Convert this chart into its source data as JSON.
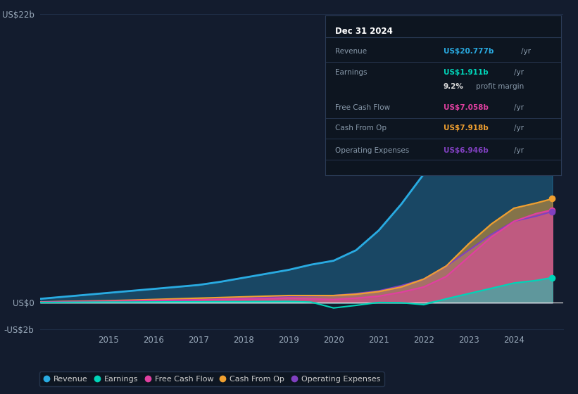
{
  "background_color": "#131c2e",
  "plot_bg_color": "#131c2e",
  "grid_color": "#1e2d45",
  "years": [
    2013.5,
    2014.0,
    2014.5,
    2015.0,
    2015.5,
    2016.0,
    2016.5,
    2017.0,
    2017.5,
    2018.0,
    2018.5,
    2019.0,
    2019.5,
    2020.0,
    2020.5,
    2021.0,
    2021.5,
    2022.0,
    2022.5,
    2023.0,
    2023.5,
    2024.0,
    2024.5,
    2024.85
  ],
  "revenue": [
    0.3,
    0.45,
    0.6,
    0.75,
    0.9,
    1.05,
    1.2,
    1.35,
    1.6,
    1.9,
    2.2,
    2.5,
    2.9,
    3.2,
    4.0,
    5.5,
    7.5,
    9.8,
    12.0,
    14.5,
    17.0,
    19.5,
    20.2,
    20.777
  ],
  "earnings": [
    0.02,
    0.03,
    0.04,
    0.05,
    0.05,
    0.06,
    0.07,
    0.07,
    0.08,
    0.08,
    0.09,
    0.1,
    0.05,
    -0.4,
    -0.2,
    0.02,
    0.0,
    -0.15,
    0.3,
    0.7,
    1.1,
    1.5,
    1.7,
    1.911
  ],
  "free_cash_flow": [
    0.05,
    0.08,
    0.1,
    0.12,
    0.15,
    0.18,
    0.2,
    0.22,
    0.25,
    0.28,
    0.3,
    0.35,
    0.3,
    0.25,
    0.35,
    0.5,
    0.8,
    1.2,
    2.0,
    3.5,
    5.0,
    6.2,
    6.8,
    7.058
  ],
  "cash_from_op": [
    0.06,
    0.1,
    0.13,
    0.16,
    0.2,
    0.25,
    0.3,
    0.35,
    0.4,
    0.45,
    0.5,
    0.55,
    0.55,
    0.55,
    0.65,
    0.85,
    1.2,
    1.8,
    2.8,
    4.5,
    6.0,
    7.2,
    7.6,
    7.918
  ],
  "operating_exp": [
    0.04,
    0.06,
    0.08,
    0.1,
    0.12,
    0.15,
    0.18,
    0.22,
    0.28,
    0.35,
    0.42,
    0.5,
    0.52,
    0.55,
    0.7,
    0.9,
    1.3,
    1.8,
    2.8,
    4.0,
    5.2,
    6.2,
    6.6,
    6.946
  ],
  "revenue_color": "#29abe2",
  "earnings_color": "#00d4b8",
  "free_cash_flow_color": "#e040a0",
  "cash_from_op_color": "#f0a030",
  "operating_exp_color": "#8040c0",
  "ylim_min": -2,
  "ylim_max": 22,
  "yticks": [
    -2,
    0,
    22
  ],
  "ytick_labels": [
    "-US$2b",
    "US$0",
    "US$22b"
  ],
  "xlim_min": 2013.5,
  "xlim_max": 2025.1,
  "xtick_years": [
    2015,
    2016,
    2017,
    2018,
    2019,
    2020,
    2021,
    2022,
    2023,
    2024
  ],
  "legend_labels": [
    "Revenue",
    "Earnings",
    "Free Cash Flow",
    "Cash From Op",
    "Operating Expenses"
  ],
  "info_box": {
    "title": "Dec 31 2024",
    "rows": [
      {
        "label": "Revenue",
        "value": "US$20.777b",
        "value_color": "#29abe2",
        "suffix": "/yr"
      },
      {
        "label": "Earnings",
        "value": "US$1.911b",
        "value_color": "#00d4b8",
        "suffix": "/yr"
      },
      {
        "label": "",
        "value": "9.2%",
        "value_color": "#dddddd",
        "suffix": "profit margin"
      },
      {
        "label": "Free Cash Flow",
        "value": "US$7.058b",
        "value_color": "#e040a0",
        "suffix": "/yr"
      },
      {
        "label": "Cash From Op",
        "value": "US$7.918b",
        "value_color": "#f0a030",
        "suffix": "/yr"
      },
      {
        "label": "Operating Expenses",
        "value": "US$6.946b",
        "value_color": "#8040c0",
        "suffix": "/yr"
      }
    ]
  }
}
